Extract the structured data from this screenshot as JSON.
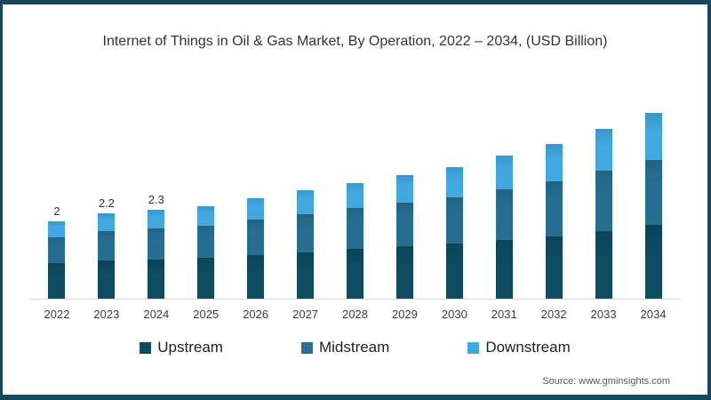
{
  "title": "Internet of Things in Oil & Gas Market, By Operation, 2022 – 2034, (USD Billion)",
  "source": "Source: www.gminsights.com",
  "frame": {
    "border_color": "#15485f",
    "background": "#ffffff",
    "axis_line_color": "#d8d8d8"
  },
  "legend": {
    "position": "bottom",
    "items": [
      {
        "label": "Upstream",
        "color": "#0d4c63"
      },
      {
        "label": "Midstream",
        "color": "#266f93"
      },
      {
        "label": "Downstream",
        "color": "#41a8e1"
      }
    ]
  },
  "chart_data": {
    "type": "bar",
    "stacked": true,
    "title": "Internet of Things in Oil & Gas Market, By Operation, 2022 – 2034, (USD Billion)",
    "xlabel": "",
    "ylabel": "",
    "unit": "USD Billion",
    "ylim": [
      0,
      5
    ],
    "grid": false,
    "legend_position": "bottom",
    "categories": [
      "2022",
      "2023",
      "2024",
      "2025",
      "2026",
      "2027",
      "2028",
      "2029",
      "2030",
      "2031",
      "2032",
      "2033",
      "2034"
    ],
    "series": [
      {
        "name": "Upstream",
        "color": "#0d4c63",
        "values": [
          0.92,
          0.98,
          1.02,
          1.06,
          1.12,
          1.2,
          1.28,
          1.35,
          1.42,
          1.52,
          1.62,
          1.75,
          1.9
        ]
      },
      {
        "name": "Midstream",
        "color": "#266f93",
        "values": [
          0.67,
          0.76,
          0.8,
          0.82,
          0.92,
          0.99,
          1.06,
          1.13,
          1.2,
          1.32,
          1.42,
          1.57,
          1.68
        ]
      },
      {
        "name": "Downstream",
        "color": "#41a8e1",
        "values": [
          0.41,
          0.46,
          0.48,
          0.52,
          0.56,
          0.61,
          0.66,
          0.72,
          0.78,
          0.86,
          0.96,
          1.08,
          1.22
        ]
      }
    ],
    "totals": [
      2.0,
      2.2,
      2.3,
      2.4,
      2.6,
      2.8,
      3.0,
      3.2,
      3.4,
      3.7,
      4.0,
      4.4,
      4.8
    ],
    "data_labels": [
      "2",
      "2.2",
      "2.3",
      "",
      "",
      "",
      "",
      "",
      "",
      "",
      "",
      "",
      ""
    ]
  }
}
